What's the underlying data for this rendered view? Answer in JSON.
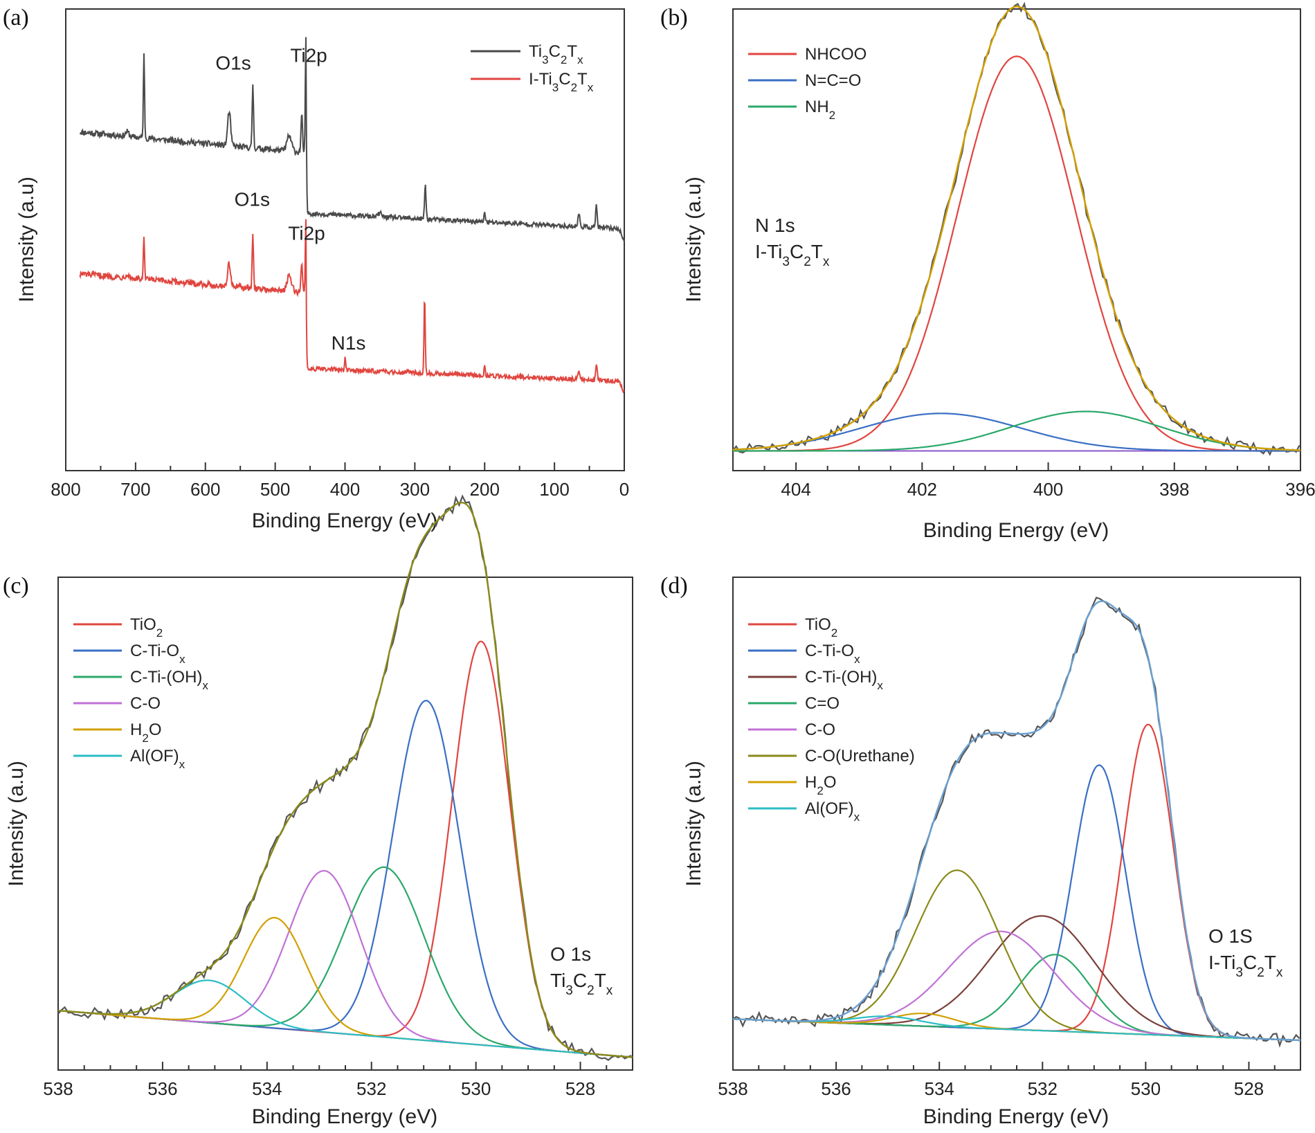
{
  "chart_data": [
    {
      "panel": "(a)",
      "type": "line",
      "xlabel": "Binding Energy (eV)",
      "ylabel": "Intensity (a.u)",
      "xlim": [
        800,
        0
      ],
      "xticks": [
        "800",
        "700",
        "600",
        "500",
        "400",
        "300",
        "200",
        "100",
        "0"
      ],
      "legend_position": "top-right",
      "series": [
        {
          "name": "Ti3C2Tx",
          "legend": {
            "main": "Ti",
            "sub1": "3",
            "mid": "C",
            "sub2": "2",
            "t": "T",
            "sub3": "x"
          },
          "color": "#4a4a4a",
          "baseline_start": 0.72,
          "baseline_end": 0.3,
          "knee": 456,
          "pre_edge": 0.62,
          "post_edge": 0.44,
          "peaks": [
            [
              712,
              0.012,
              6
            ],
            [
              688,
              0.22,
              2.0
            ],
            [
              566,
              0.09,
              5
            ],
            [
              532,
              0.17,
              2.2
            ],
            [
              480,
              0.04,
              8
            ],
            [
              462,
              0.1,
              2.5
            ],
            [
              456,
              0.3,
              2.0
            ],
            [
              350,
              0.01,
              6
            ],
            [
              285,
              0.09,
              2.5
            ],
            [
              200,
              0.03,
              2.0
            ],
            [
              65,
              0.035,
              3
            ],
            [
              40,
              0.06,
              2.5
            ]
          ]
        },
        {
          "name": "I-Ti3C2Tx",
          "legend": {
            "main": "I-Ti",
            "sub1": "3",
            "mid": "C",
            "sub2": "2",
            "t": "T",
            "sub3": "x"
          },
          "color": "#e0453f",
          "baseline_start": 0.33,
          "baseline_end": -0.06,
          "knee": 456,
          "pre_edge": 0.25,
          "post_edge": 0.03,
          "peaks": [
            [
              712,
              0.01,
              6
            ],
            [
              688,
              0.11,
              2.0
            ],
            [
              566,
              0.06,
              5
            ],
            [
              532,
              0.14,
              2.2
            ],
            [
              480,
              0.04,
              8
            ],
            [
              462,
              0.08,
              2.5
            ],
            [
              456,
              0.2,
              2.0
            ],
            [
              400,
              0.03,
              2.0
            ],
            [
              310,
              0.005,
              6
            ],
            [
              286,
              0.21,
              2.0
            ],
            [
              200,
              0.025,
              2.0
            ],
            [
              65,
              0.025,
              3
            ],
            [
              40,
              0.045,
              2.5
            ]
          ]
        }
      ],
      "annotations": [
        {
          "text": "O1s",
          "x": 560,
          "y": 0.84
        },
        {
          "text": "Ti2p",
          "x": 452,
          "y": 0.86
        },
        {
          "text": "O1s",
          "x": 533,
          "y": 0.48
        },
        {
          "text": "Ti2p",
          "x": 455,
          "y": 0.39
        },
        {
          "text": "N1s",
          "x": 395,
          "y": 0.1
        }
      ],
      "ylim": [
        -0.22,
        1.0
      ]
    },
    {
      "panel": "(b)",
      "type": "line",
      "xlabel": "Binding Energy (eV)",
      "ylabel": "Intensity (a.u)",
      "xlim": [
        405,
        396
      ],
      "xticks": [
        "404",
        "402",
        "400",
        "398",
        "396"
      ],
      "ylim": [
        -0.05,
        1.12
      ],
      "legend_position": "top-left",
      "background": {
        "color": "#8a55c8",
        "y0": 0.0,
        "y1": 0.0
      },
      "components": [
        {
          "name": "NHCOO",
          "color": "#e0453f",
          "center": 400.5,
          "amplitude": 1.0,
          "fwhm": 2.2
        },
        {
          "name": "N=C=O",
          "color": "#3a6fc4",
          "center": 401.7,
          "amplitude": 0.095,
          "fwhm": 3.0
        },
        {
          "name": "NH2",
          "legend": {
            "main": "NH",
            "sub1": "2"
          },
          "color": "#2aa869",
          "center": 399.4,
          "amplitude": 0.1,
          "fwhm": 2.8
        }
      ],
      "envelope_color": "#d1a000",
      "raw_color": "#555555",
      "annotation_lines": [
        "N 1s",
        "I-Ti3C2Tx"
      ]
    },
    {
      "panel": "(c)",
      "type": "line",
      "xlabel": "Binding Energy (eV)",
      "ylabel": "Intensity (a.u)",
      "xlim": [
        538,
        527
      ],
      "xticks": [
        "538",
        "536",
        "534",
        "532",
        "530",
        "528"
      ],
      "ylim": [
        -0.08,
        1.08
      ],
      "legend_position": "top-left",
      "background": {
        "color": "#8a55c8",
        "y0": 0.06,
        "y1": -0.05
      },
      "components": [
        {
          "name": "TiO2",
          "legend": {
            "main": "TiO",
            "sub1": "2"
          },
          "color": "#e0453f",
          "center": 529.9,
          "amplitude": 0.95,
          "fwhm": 1.3
        },
        {
          "name": "C-Ti-Ox",
          "legend": {
            "main": "C-Ti-O",
            "sub1": "x"
          },
          "color": "#3a6fc4",
          "center": 530.95,
          "amplitude": 0.8,
          "fwhm": 1.5
        },
        {
          "name": "C-Ti-(OH)x",
          "legend": {
            "main": "C-Ti-(OH)",
            "sub1": "x"
          },
          "color": "#2aa869",
          "center": 531.75,
          "amplitude": 0.4,
          "fwhm": 1.8
        },
        {
          "name": "C-O",
          "color": "#c071d6",
          "center": 532.9,
          "amplitude": 0.38,
          "fwhm": 1.6
        },
        {
          "name": "H2O",
          "legend": {
            "main": "H",
            "sub1": "2",
            "tail": "O"
          },
          "color": "#d1a000",
          "center": 533.85,
          "amplitude": 0.26,
          "fwhm": 1.4
        },
        {
          "name": "Al(OF)x",
          "legend": {
            "main": "Al(OF)",
            "sub1": "x"
          },
          "color": "#2bbdc4",
          "center": 535.1,
          "amplitude": 0.1,
          "fwhm": 1.6
        }
      ],
      "envelope_color": "#8a8a1a",
      "raw_color": "#555555",
      "annotation_lines": [
        "O 1s",
        "Ti3C2Tx"
      ]
    },
    {
      "panel": "(d)",
      "type": "line",
      "xlabel": "Binding Energy (eV)",
      "ylabel": "Intensity (a.u)",
      "xlim": [
        538,
        527
      ],
      "xticks": [
        "538",
        "536",
        "534",
        "532",
        "530",
        "528"
      ],
      "ylim": [
        -0.08,
        1.08
      ],
      "legend_position": "top-left",
      "background": {
        "color": "#e87a2a",
        "y0": 0.04,
        "y1": -0.01
      },
      "components": [
        {
          "name": "TiO2",
          "legend": {
            "main": "TiO",
            "sub1": "2"
          },
          "color": "#e0453f",
          "center": 529.95,
          "amplitude": 0.73,
          "fwhm": 1.15
        },
        {
          "name": "C-Ti-Ox",
          "legend": {
            "main": "C-Ti-O",
            "sub1": "x"
          },
          "color": "#3a6fc4",
          "center": 530.9,
          "amplitude": 0.63,
          "fwhm": 1.2
        },
        {
          "name": "C-Ti-(OH)x",
          "legend": {
            "main": "C-Ti-(OH)",
            "sub1": "x"
          },
          "color": "#7a3f3a",
          "center": 532.0,
          "amplitude": 0.27,
          "fwhm": 2.4
        },
        {
          "name": "C=O",
          "color": "#2aa869",
          "center": 531.75,
          "amplitude": 0.18,
          "fwhm": 1.6
        },
        {
          "name": "C-O",
          "color": "#c071d6",
          "center": 532.8,
          "amplitude": 0.23,
          "fwhm": 2.4
        },
        {
          "name": "C-O(Urethane)",
          "color": "#8a8a1a",
          "center": 533.65,
          "amplitude": 0.37,
          "fwhm": 1.9
        },
        {
          "name": "H2O",
          "legend": {
            "main": "H",
            "sub1": "2",
            "tail": "O"
          },
          "color": "#d1a000",
          "center": 534.3,
          "amplitude": 0.03,
          "fwhm": 1.4
        },
        {
          "name": "Al(OF)x",
          "legend": {
            "main": "Al(OF)",
            "sub1": "x"
          },
          "color": "#2bbdc4",
          "center": 535.0,
          "amplitude": 0.02,
          "fwhm": 1.5
        }
      ],
      "envelope_color": "#6a9fd0",
      "raw_color": "#555555",
      "annotation_lines": [
        "O 1S",
        "I-Ti3C2Tx"
      ]
    }
  ]
}
